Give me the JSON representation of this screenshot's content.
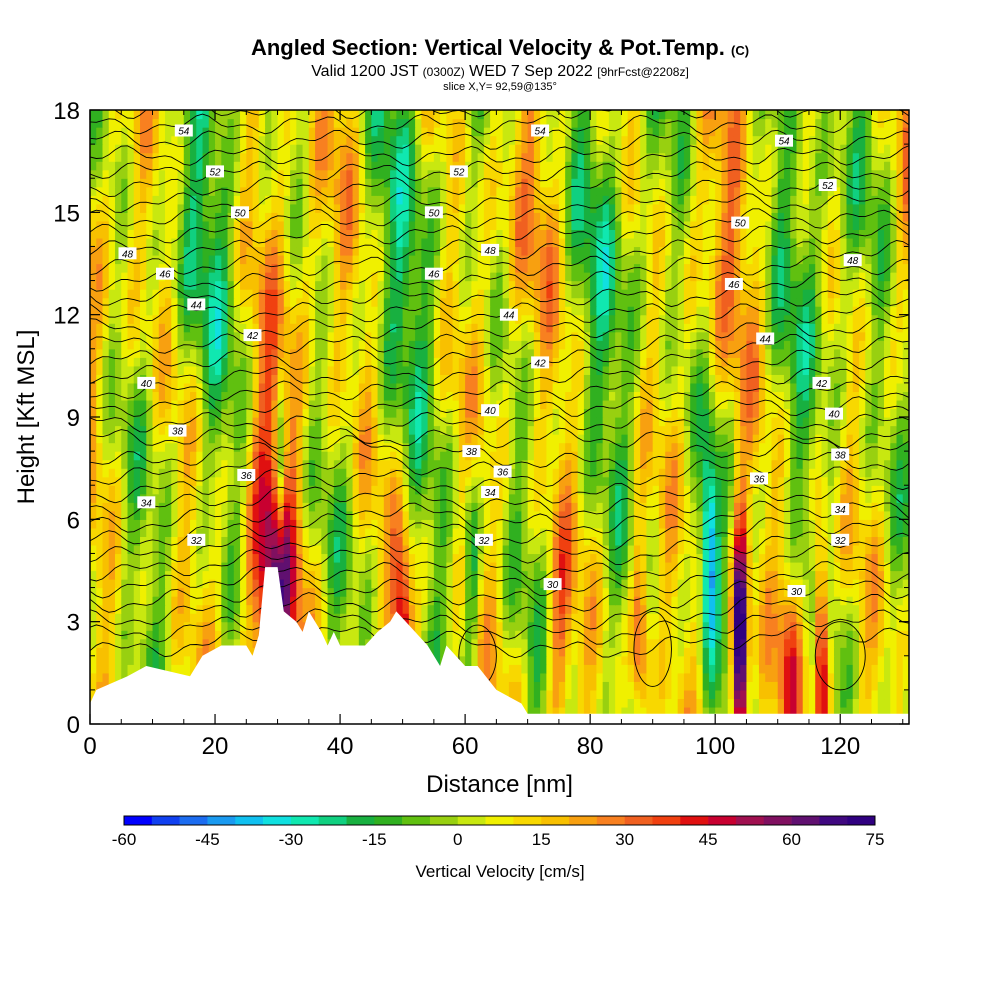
{
  "title": {
    "main": "Angled Section: Vertical Velocity & Pot.Temp.",
    "main_suffix": "(C)",
    "valid_prefix": "Valid 1200 JST",
    "valid_utc": "(0300Z)",
    "valid_date": "WED 7 Sep 2022",
    "forecast": "[9hrFcst@2208z]",
    "slice": "slice X,Y= 92,59@135°"
  },
  "chart_data": {
    "type": "heatmap",
    "xlabel": "Distance [nm]",
    "ylabel": "Height [Kft MSL]",
    "xlim": [
      0,
      131
    ],
    "ylim": [
      0,
      18
    ],
    "xticks": [
      0,
      20,
      40,
      60,
      80,
      100,
      120
    ],
    "yticks": [
      0,
      3,
      6,
      9,
      12,
      15,
      18
    ],
    "colorbar": {
      "label": "Vertical Velocity [cm/s]",
      "ticks": [
        -60,
        -45,
        -30,
        -15,
        0,
        15,
        30,
        45,
        60,
        75
      ],
      "min": -60,
      "max": 75,
      "step": 5,
      "colors": [
        "#0000ff",
        "#1040f0",
        "#1c6cf0",
        "#1a9af0",
        "#10c0f0",
        "#10e0e0",
        "#10e8b0",
        "#10d080",
        "#18b040",
        "#30b020",
        "#60c010",
        "#98d010",
        "#c8e810",
        "#f0f000",
        "#f8d800",
        "#f8c000",
        "#f8a010",
        "#f88020",
        "#f06020",
        "#f04010",
        "#e01010",
        "#c80030",
        "#a01050",
        "#801060",
        "#601070",
        "#400880",
        "#300080"
      ]
    },
    "contour_field": "Potential Temperature (C)",
    "contour_labels": [
      {
        "x": 15,
        "y": 17.4,
        "v": "54"
      },
      {
        "x": 72,
        "y": 17.4,
        "v": "54"
      },
      {
        "x": 111,
        "y": 17.1,
        "v": "54"
      },
      {
        "x": 20,
        "y": 16.2,
        "v": "52"
      },
      {
        "x": 59,
        "y": 16.2,
        "v": "52"
      },
      {
        "x": 118,
        "y": 15.8,
        "v": "52"
      },
      {
        "x": 24,
        "y": 15.0,
        "v": "50"
      },
      {
        "x": 55,
        "y": 15.0,
        "v": "50"
      },
      {
        "x": 104,
        "y": 14.7,
        "v": "50"
      },
      {
        "x": 6,
        "y": 13.8,
        "v": "48"
      },
      {
        "x": 64,
        "y": 13.9,
        "v": "48"
      },
      {
        "x": 122,
        "y": 13.6,
        "v": "48"
      },
      {
        "x": 12,
        "y": 13.2,
        "v": "46"
      },
      {
        "x": 55,
        "y": 13.2,
        "v": "46"
      },
      {
        "x": 103,
        "y": 12.9,
        "v": "46"
      },
      {
        "x": 17,
        "y": 12.3,
        "v": "44"
      },
      {
        "x": 67,
        "y": 12.0,
        "v": "44"
      },
      {
        "x": 108,
        "y": 11.3,
        "v": "44"
      },
      {
        "x": 26,
        "y": 11.4,
        "v": "42"
      },
      {
        "x": 72,
        "y": 10.6,
        "v": "42"
      },
      {
        "x": 117,
        "y": 10.0,
        "v": "42"
      },
      {
        "x": 9,
        "y": 10.0,
        "v": "40"
      },
      {
        "x": 64,
        "y": 9.2,
        "v": "40"
      },
      {
        "x": 119,
        "y": 9.1,
        "v": "40"
      },
      {
        "x": 14,
        "y": 8.6,
        "v": "38"
      },
      {
        "x": 61,
        "y": 8.0,
        "v": "38"
      },
      {
        "x": 120,
        "y": 7.9,
        "v": "38"
      },
      {
        "x": 25,
        "y": 7.3,
        "v": "36"
      },
      {
        "x": 66,
        "y": 7.4,
        "v": "36"
      },
      {
        "x": 107,
        "y": 7.2,
        "v": "36"
      },
      {
        "x": 9,
        "y": 6.5,
        "v": "34"
      },
      {
        "x": 64,
        "y": 6.8,
        "v": "34"
      },
      {
        "x": 120,
        "y": 6.3,
        "v": "34"
      },
      {
        "x": 17,
        "y": 5.4,
        "v": "32"
      },
      {
        "x": 63,
        "y": 5.4,
        "v": "32"
      },
      {
        "x": 120,
        "y": 5.4,
        "v": "32"
      },
      {
        "x": 74,
        "y": 4.1,
        "v": "30"
      },
      {
        "x": 113,
        "y": 3.9,
        "v": "30"
      }
    ]
  }
}
